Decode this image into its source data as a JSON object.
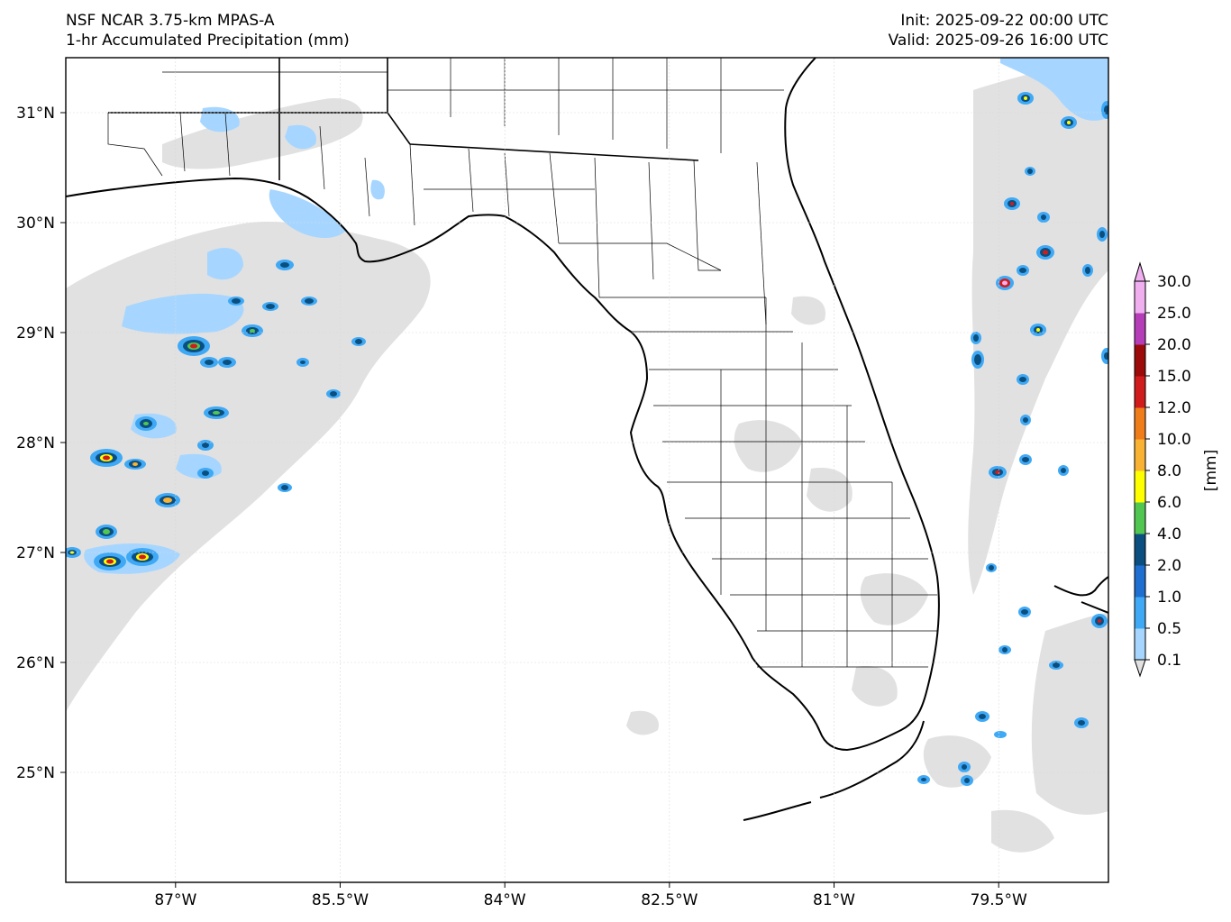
{
  "header": {
    "model_title": "NSF NCAR 3.75-km MPAS-A",
    "field_title": "1-hr Accumulated Precipitation (mm)",
    "init": "Init: 2025-09-22 00:00 UTC",
    "valid": "Valid: 2025-09-26 16:00 UTC"
  },
  "map": {
    "lon_range": [
      -88.0,
      -78.5
    ],
    "lat_range": [
      24.0,
      31.5
    ],
    "lon_ticks": [
      {
        "value": -87.0,
        "label": "87°W"
      },
      {
        "value": -85.5,
        "label": "85.5°W"
      },
      {
        "value": -84.0,
        "label": "84°W"
      },
      {
        "value": -82.5,
        "label": "82.5°W"
      },
      {
        "value": -81.0,
        "label": "81°W"
      },
      {
        "value": -79.5,
        "label": "79.5°W"
      }
    ],
    "lat_ticks": [
      {
        "value": 31,
        "label": "31°N"
      },
      {
        "value": 30,
        "label": "30°N"
      },
      {
        "value": 29,
        "label": "29°N"
      },
      {
        "value": 28,
        "label": "28°N"
      },
      {
        "value": 27,
        "label": "27°N"
      },
      {
        "value": 26,
        "label": "26°N"
      },
      {
        "value": 25,
        "label": "25°N"
      }
    ],
    "gridlines": true
  },
  "colorbar": {
    "unit_label": "[mm]",
    "levels": [
      "0.1",
      "0.5",
      "1.0",
      "2.0",
      "4.0",
      "6.0",
      "8.0",
      "10.0",
      "12.0",
      "15.0",
      "20.0",
      "25.0",
      "30.0"
    ],
    "colors": [
      "#e1e1e1",
      "#a6d6ff",
      "#3fa9f5",
      "#1e6fd0",
      "#0b4f80",
      "#51c751",
      "#ffff00",
      "#f9b233",
      "#ef7d1a",
      "#d01c1c",
      "#9c0a0a",
      "#b63db8",
      "#f0b0f0"
    ]
  },
  "colors": {
    "land_outline": "#000000",
    "county_lines": "#000000",
    "grid": "#d9d9d9"
  }
}
